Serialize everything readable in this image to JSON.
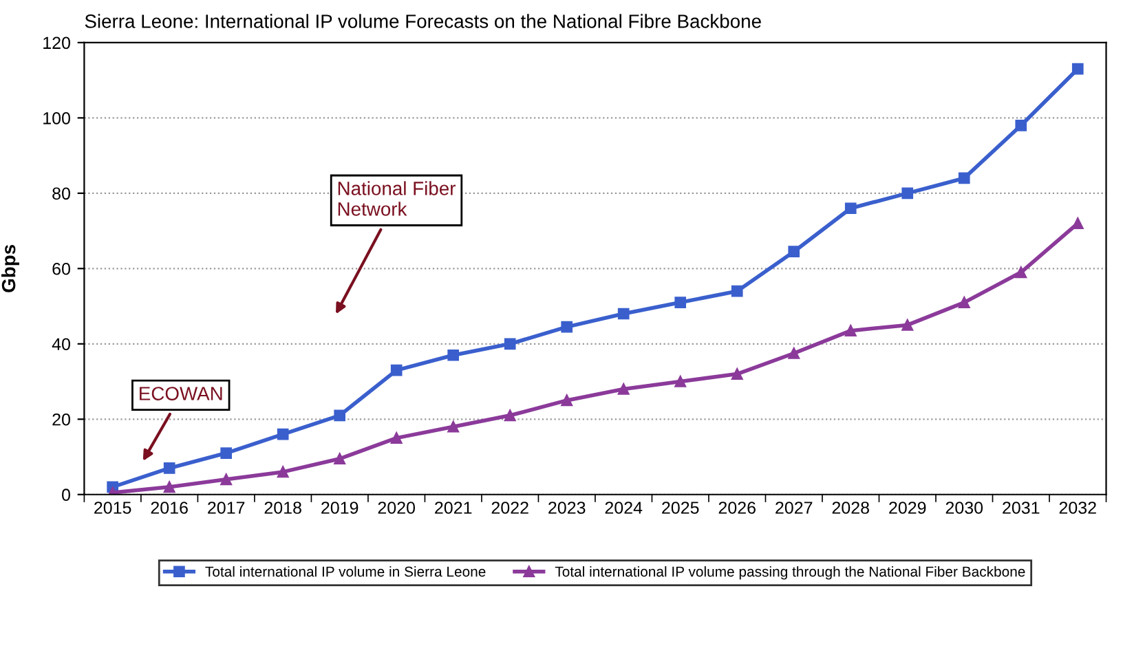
{
  "chart_data": {
    "type": "line",
    "title": "Sierra Leone: International IP volume Forecasts on the National Fibre Backbone",
    "ylabel": "Gbps",
    "categories": [
      "2015",
      "2016",
      "2017",
      "2018",
      "2019",
      "2020",
      "2021",
      "2022",
      "2023",
      "2024",
      "2025",
      "2026",
      "2027",
      "2028",
      "2029",
      "2030",
      "2031",
      "2032"
    ],
    "series": [
      {
        "name": "Total international IP volume in Sierra Leone",
        "color": "#3a5fcd",
        "marker": "square",
        "values": [
          2,
          7,
          11,
          16,
          21,
          33,
          37,
          40,
          44.5,
          48,
          51,
          54,
          64.5,
          76,
          80,
          84,
          98,
          113
        ]
      },
      {
        "name": "Total international IP volume passing through the National Fiber Backbone",
        "color": "#8b3a9a",
        "marker": "triangle",
        "values": [
          0.5,
          2,
          4,
          6,
          9.5,
          15,
          18,
          21,
          25,
          28,
          30,
          32,
          37.5,
          43.5,
          45,
          51,
          59,
          72
        ]
      }
    ],
    "ylim": [
      0,
      120
    ],
    "yticks": [
      0,
      20,
      40,
      60,
      80,
      100,
      120
    ],
    "grid": "y",
    "legend": "bottom",
    "line_style": "solid",
    "annotations": [
      "ECOWAN",
      "National Fiber\nNetwork"
    ]
  }
}
